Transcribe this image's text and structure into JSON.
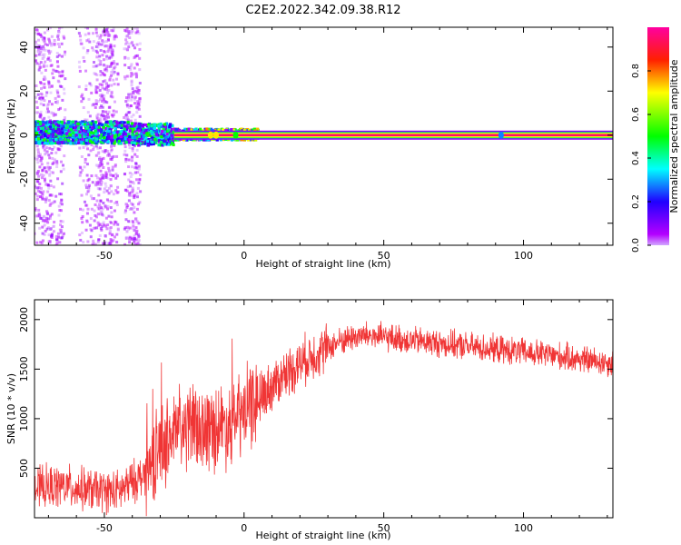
{
  "figure": {
    "title": "C2E2.2022.342.09.38.R12"
  },
  "chart_data": [
    {
      "type": "heatmap",
      "title": "",
      "xlabel": "Height of straight line (km)",
      "ylabel": "Frequency (Hz)",
      "xlim": [
        -75,
        132
      ],
      "ylim": [
        -50,
        49
      ],
      "xticks": [
        -50,
        0,
        50,
        100
      ],
      "yticks": [
        -40,
        -20,
        0,
        20,
        40
      ],
      "ridge": {
        "frequency_hz": 0,
        "from_x": -25,
        "to_x": 132,
        "amplitude": 0.95
      },
      "colorbar": {
        "label": "Normalized spectral amplitude",
        "range": [
          0,
          1
        ],
        "ticks": [
          0.0,
          0.2,
          0.4,
          0.6,
          0.8
        ],
        "tick_labels": [
          "0.0",
          "0.2",
          "0.4",
          "0.6",
          "0.8"
        ],
        "colors": [
          "#b400ff",
          "#0000ff",
          "#00ffff",
          "#00ff00",
          "#ffff00",
          "#ff0000",
          "#ff00ff"
        ]
      },
      "grid": false
    },
    {
      "type": "line",
      "title": "",
      "xlabel": "Height of straight line (km)",
      "ylabel": "SNR (10 * v/v)",
      "xlim": [
        -75,
        132
      ],
      "ylim": [
        0,
        2200
      ],
      "xticks": [
        -50,
        0,
        50,
        100
      ],
      "yticks": [
        500,
        1000,
        1500,
        2000
      ],
      "line_color": "#f03535",
      "envelope": [
        {
          "x": -75,
          "y": 300
        },
        {
          "x": -65,
          "y": 320
        },
        {
          "x": -55,
          "y": 280
        },
        {
          "x": -45,
          "y": 260
        },
        {
          "x": -35,
          "y": 450
        },
        {
          "x": -30,
          "y": 720
        },
        {
          "x": -25,
          "y": 850
        },
        {
          "x": -20,
          "y": 920
        },
        {
          "x": -15,
          "y": 900
        },
        {
          "x": -10,
          "y": 920
        },
        {
          "x": -5,
          "y": 950
        },
        {
          "x": 0,
          "y": 1050
        },
        {
          "x": 5,
          "y": 1200
        },
        {
          "x": 10,
          "y": 1330
        },
        {
          "x": 15,
          "y": 1460
        },
        {
          "x": 20,
          "y": 1560
        },
        {
          "x": 25,
          "y": 1650
        },
        {
          "x": 30,
          "y": 1720
        },
        {
          "x": 35,
          "y": 1790
        },
        {
          "x": 40,
          "y": 1830
        },
        {
          "x": 45,
          "y": 1840
        },
        {
          "x": 50,
          "y": 1820
        },
        {
          "x": 60,
          "y": 1790
        },
        {
          "x": 70,
          "y": 1760
        },
        {
          "x": 80,
          "y": 1730
        },
        {
          "x": 90,
          "y": 1700
        },
        {
          "x": 100,
          "y": 1670
        },
        {
          "x": 110,
          "y": 1640
        },
        {
          "x": 120,
          "y": 1600
        },
        {
          "x": 132,
          "y": 1560
        }
      ],
      "grid": false
    }
  ]
}
